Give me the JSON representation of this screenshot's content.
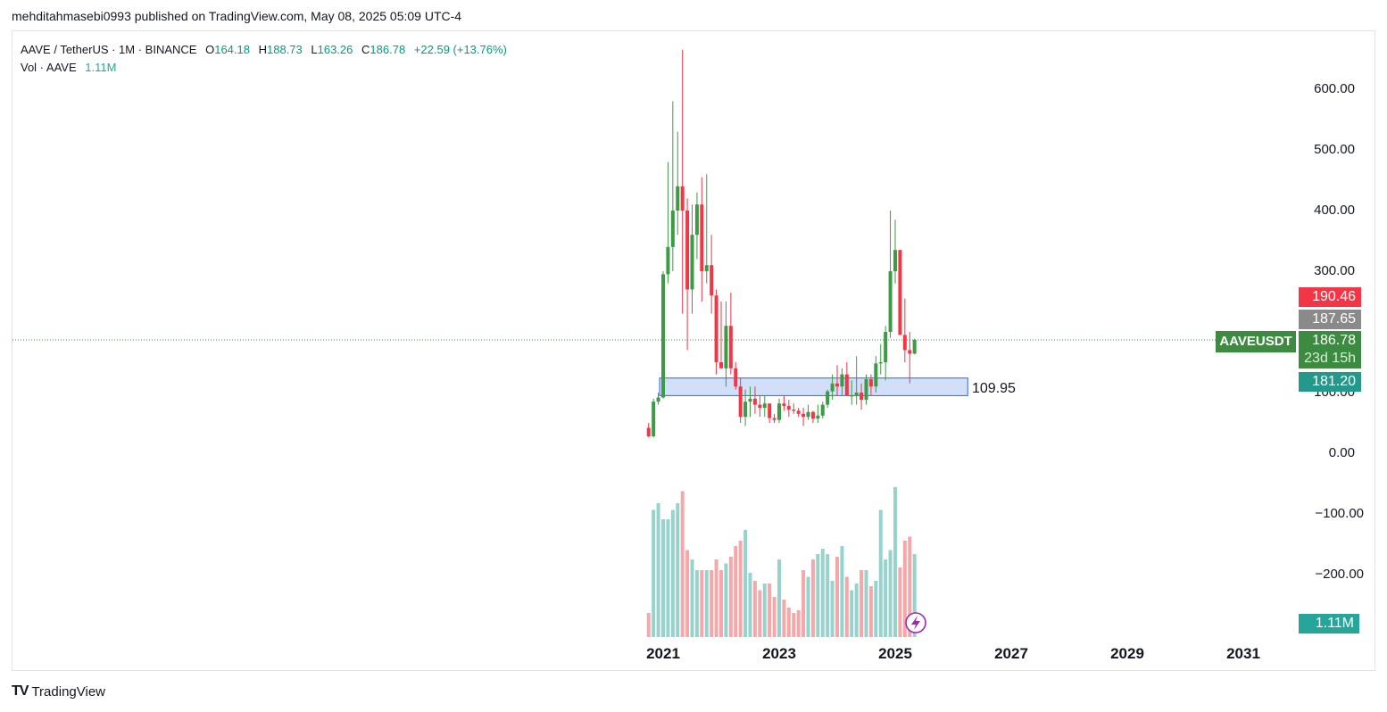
{
  "header": {
    "publisher_line": "mehditahmasebi0993 published on TradingView.com, May 08, 2025 05:09 UTC-4"
  },
  "legend": {
    "symbol_line": "AAVE / TetherUS · 1M · BINANCE",
    "o_label": "O",
    "o_val": "164.18",
    "h_label": "H",
    "h_val": "188.73",
    "l_label": "L",
    "l_val": "163.26",
    "c_label": "C",
    "c_val": "186.78",
    "change": "+22.59 (+13.76%)",
    "vol_label": "Vol · AAVE",
    "vol_val": "1.11M"
  },
  "y_axis_labels": [
    "600.00",
    "500.00",
    "400.00",
    "300.00",
    "100.00",
    "0.00",
    "−100.00",
    "−200.00"
  ],
  "x_axis_labels": [
    "2021",
    "2023",
    "2025",
    "2027",
    "2029",
    "2031"
  ],
  "price_tags": {
    "high_tag": "190.46",
    "prev_close_tag": "187.65",
    "last_price": "186.78",
    "countdown": "23d 15h",
    "low_tag": "181.20",
    "symbol": "AAVEUSDT",
    "volume_tag": "1.11M"
  },
  "annotation": {
    "level_label": "109.95"
  },
  "brand": {
    "name": "TradingView"
  },
  "colors": {
    "up": "#3d9a45",
    "down": "#f23645",
    "vol_up": "#96d3cc",
    "vol_down": "#f5a7a9",
    "zone_fill": "#c9dbf7",
    "zone_border": "#2962ff",
    "high_tag": "#f23645",
    "prev_tag": "#808080",
    "last_tag": "#3d8b40",
    "low_tag": "#22998a",
    "vol_tag": "#26a69a"
  },
  "chart_data": {
    "type": "candlestick",
    "interval": "1M",
    "y_range": [
      -300,
      680
    ],
    "zone": {
      "from": 95,
      "to": 124,
      "start": "2021-01",
      "end": "2026-04",
      "label": "109.95"
    },
    "candles": [
      {
        "t": "2020-10",
        "o": 42,
        "h": 50,
        "l": 26,
        "c": 28
      },
      {
        "t": "2020-11",
        "o": 28,
        "h": 90,
        "l": 26,
        "c": 85
      },
      {
        "t": "2020-12",
        "o": 85,
        "h": 100,
        "l": 80,
        "c": 92
      },
      {
        "t": "2021-01",
        "o": 92,
        "h": 300,
        "l": 90,
        "c": 295
      },
      {
        "t": "2021-02",
        "o": 295,
        "h": 480,
        "l": 280,
        "c": 340
      },
      {
        "t": "2021-03",
        "o": 340,
        "h": 580,
        "l": 300,
        "c": 400
      },
      {
        "t": "2021-04",
        "o": 400,
        "h": 530,
        "l": 360,
        "c": 440
      },
      {
        "t": "2021-05",
        "o": 440,
        "h": 665,
        "l": 230,
        "c": 400
      },
      {
        "t": "2021-06",
        "o": 400,
        "h": 420,
        "l": 170,
        "c": 270
      },
      {
        "t": "2021-07",
        "o": 270,
        "h": 410,
        "l": 230,
        "c": 360
      },
      {
        "t": "2021-08",
        "o": 360,
        "h": 430,
        "l": 320,
        "c": 410
      },
      {
        "t": "2021-09",
        "o": 410,
        "h": 455,
        "l": 250,
        "c": 300
      },
      {
        "t": "2021-10",
        "o": 300,
        "h": 460,
        "l": 280,
        "c": 310
      },
      {
        "t": "2021-11",
        "o": 310,
        "h": 360,
        "l": 230,
        "c": 260
      },
      {
        "t": "2021-12",
        "o": 260,
        "h": 270,
        "l": 130,
        "c": 150
      },
      {
        "t": "2022-01",
        "o": 150,
        "h": 250,
        "l": 140,
        "c": 140
      },
      {
        "t": "2022-02",
        "o": 140,
        "h": 250,
        "l": 110,
        "c": 210
      },
      {
        "t": "2022-03",
        "o": 210,
        "h": 265,
        "l": 130,
        "c": 140
      },
      {
        "t": "2022-04",
        "o": 140,
        "h": 150,
        "l": 105,
        "c": 110
      },
      {
        "t": "2022-05",
        "o": 110,
        "h": 125,
        "l": 50,
        "c": 60
      },
      {
        "t": "2022-06",
        "o": 60,
        "h": 105,
        "l": 45,
        "c": 85
      },
      {
        "t": "2022-07",
        "o": 85,
        "h": 110,
        "l": 60,
        "c": 90
      },
      {
        "t": "2022-08",
        "o": 90,
        "h": 110,
        "l": 65,
        "c": 80
      },
      {
        "t": "2022-09",
        "o": 80,
        "h": 95,
        "l": 60,
        "c": 75
      },
      {
        "t": "2022-10",
        "o": 75,
        "h": 95,
        "l": 60,
        "c": 82
      },
      {
        "t": "2022-11",
        "o": 82,
        "h": 80,
        "l": 50,
        "c": 58
      },
      {
        "t": "2022-12",
        "o": 58,
        "h": 65,
        "l": 50,
        "c": 55
      },
      {
        "t": "2023-01",
        "o": 55,
        "h": 90,
        "l": 50,
        "c": 82
      },
      {
        "t": "2023-02",
        "o": 82,
        "h": 95,
        "l": 70,
        "c": 78
      },
      {
        "t": "2023-03",
        "o": 78,
        "h": 88,
        "l": 60,
        "c": 72
      },
      {
        "t": "2023-04",
        "o": 72,
        "h": 82,
        "l": 65,
        "c": 70
      },
      {
        "t": "2023-05",
        "o": 70,
        "h": 75,
        "l": 60,
        "c": 65
      },
      {
        "t": "2023-06",
        "o": 65,
        "h": 75,
        "l": 45,
        "c": 60
      },
      {
        "t": "2023-07",
        "o": 60,
        "h": 80,
        "l": 55,
        "c": 68
      },
      {
        "t": "2023-08",
        "o": 68,
        "h": 70,
        "l": 50,
        "c": 57
      },
      {
        "t": "2023-09",
        "o": 57,
        "h": 80,
        "l": 50,
        "c": 62
      },
      {
        "t": "2023-10",
        "o": 62,
        "h": 85,
        "l": 57,
        "c": 80
      },
      {
        "t": "2023-11",
        "o": 80,
        "h": 105,
        "l": 75,
        "c": 102
      },
      {
        "t": "2023-12",
        "o": 102,
        "h": 130,
        "l": 88,
        "c": 115
      },
      {
        "t": "2024-01",
        "o": 115,
        "h": 145,
        "l": 95,
        "c": 110
      },
      {
        "t": "2024-02",
        "o": 110,
        "h": 140,
        "l": 95,
        "c": 130
      },
      {
        "t": "2024-03",
        "o": 130,
        "h": 150,
        "l": 100,
        "c": 95
      },
      {
        "t": "2024-04",
        "o": 95,
        "h": 120,
        "l": 80,
        "c": 95
      },
      {
        "t": "2024-05",
        "o": 95,
        "h": 160,
        "l": 80,
        "c": 100
      },
      {
        "t": "2024-06",
        "o": 100,
        "h": 115,
        "l": 72,
        "c": 88
      },
      {
        "t": "2024-07",
        "o": 88,
        "h": 130,
        "l": 80,
        "c": 122
      },
      {
        "t": "2024-08",
        "o": 122,
        "h": 130,
        "l": 95,
        "c": 110
      },
      {
        "t": "2024-09",
        "o": 110,
        "h": 160,
        "l": 100,
        "c": 148
      },
      {
        "t": "2024-10",
        "o": 148,
        "h": 180,
        "l": 130,
        "c": 150
      },
      {
        "t": "2024-11",
        "o": 150,
        "h": 210,
        "l": 120,
        "c": 200
      },
      {
        "t": "2024-12",
        "o": 200,
        "h": 400,
        "l": 190,
        "c": 300
      },
      {
        "t": "2025-01",
        "o": 300,
        "h": 385,
        "l": 280,
        "c": 335
      },
      {
        "t": "2025-02",
        "o": 335,
        "h": 335,
        "l": 200,
        "c": 195
      },
      {
        "t": "2025-03",
        "o": 195,
        "h": 255,
        "l": 150,
        "c": 170
      },
      {
        "t": "2025-04",
        "o": 170,
        "h": 200,
        "l": 115,
        "c": 164
      },
      {
        "t": "2025-05",
        "o": 164.18,
        "h": 188.73,
        "l": 163.26,
        "c": 186.78
      }
    ],
    "volume_relative": [
      0.18,
      0.95,
      1.0,
      0.88,
      0.88,
      0.95,
      1.0,
      1.09,
      0.65,
      0.58,
      0.5,
      0.5,
      0.5,
      0.5,
      0.58,
      0.5,
      0.55,
      0.6,
      0.68,
      0.72,
      0.8,
      0.48,
      0.42,
      0.35,
      0.4,
      0.4,
      0.3,
      0.58,
      0.28,
      0.22,
      0.18,
      0.2,
      0.5,
      0.45,
      0.58,
      0.62,
      0.66,
      0.62,
      0.42,
      0.6,
      0.68,
      0.45,
      0.35,
      0.4,
      0.5,
      0.5,
      0.38,
      0.42,
      0.95,
      0.58,
      0.65,
      1.12,
      0.52,
      0.72,
      0.75,
      0.62
    ]
  }
}
